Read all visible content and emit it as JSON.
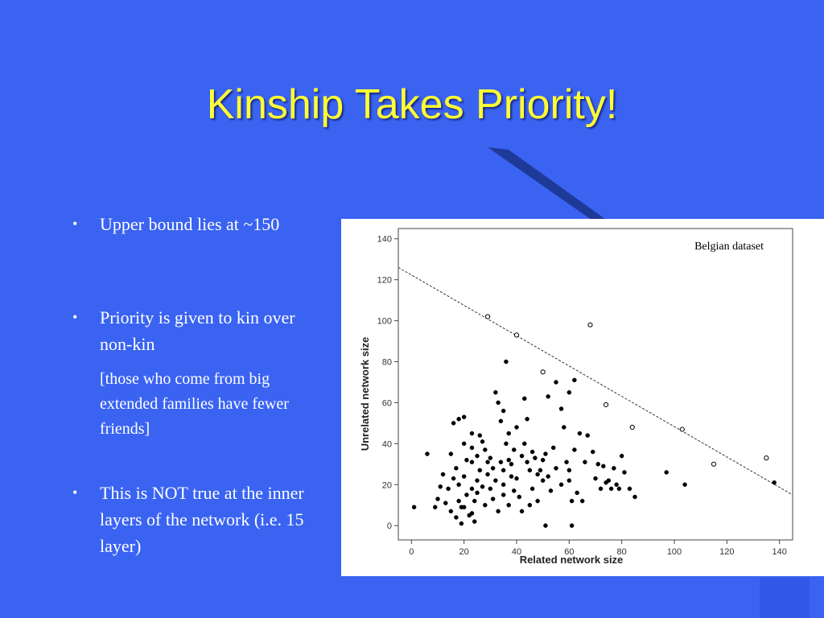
{
  "slide": {
    "title": "Kinship Takes Priority!",
    "bullets": [
      {
        "text": "Upper bound lies at ~150"
      },
      {
        "text": "Priority is given to kin over non-kin"
      },
      {
        "text": "This is NOT true at the inner layers of the network (i.e. 15 layer)"
      }
    ],
    "sub_note": "[those who come from big extended families have fewer friends]",
    "bullet_glyph": "•",
    "colors": {
      "background": "#3a63f2",
      "title": "#ffff33",
      "text": "#ffffff"
    }
  },
  "chart_data": {
    "type": "scatter",
    "annotation": "Belgian dataset",
    "xlabel": "Related network size",
    "ylabel": "Unrelated network size",
    "xlim": [
      -5,
      145
    ],
    "ylim": [
      -7,
      145
    ],
    "xticks": [
      0,
      20,
      40,
      60,
      80,
      100,
      120,
      140
    ],
    "yticks": [
      0,
      20,
      40,
      60,
      80,
      100,
      120,
      140
    ],
    "grid": false,
    "boundary_line": {
      "style": "dashed",
      "from": [
        -5,
        126
      ],
      "to": [
        145,
        15
      ]
    },
    "series": [
      {
        "marker": "filled",
        "points": [
          [
            1,
            9
          ],
          [
            6,
            35
          ],
          [
            9,
            9
          ],
          [
            10,
            13
          ],
          [
            11,
            19
          ],
          [
            12,
            25
          ],
          [
            13,
            11
          ],
          [
            14,
            18
          ],
          [
            15,
            35
          ],
          [
            15,
            7
          ],
          [
            16,
            50
          ],
          [
            16,
            23
          ],
          [
            17,
            28
          ],
          [
            17,
            4
          ],
          [
            18,
            52
          ],
          [
            18,
            12
          ],
          [
            18,
            20
          ],
          [
            19,
            9
          ],
          [
            19,
            1
          ],
          [
            20,
            53
          ],
          [
            20,
            40
          ],
          [
            20,
            24
          ],
          [
            20,
            9
          ],
          [
            21,
            32
          ],
          [
            21,
            15
          ],
          [
            22,
            5
          ],
          [
            23,
            45
          ],
          [
            23,
            38
          ],
          [
            23,
            31
          ],
          [
            23,
            18
          ],
          [
            23,
            6
          ],
          [
            24,
            12
          ],
          [
            24,
            2
          ],
          [
            25,
            34
          ],
          [
            25,
            22
          ],
          [
            25,
            16
          ],
          [
            26,
            44
          ],
          [
            26,
            27
          ],
          [
            27,
            41
          ],
          [
            27,
            19
          ],
          [
            28,
            37
          ],
          [
            28,
            10
          ],
          [
            29,
            25
          ],
          [
            29,
            31
          ],
          [
            30,
            33
          ],
          [
            30,
            18
          ],
          [
            31,
            28
          ],
          [
            31,
            13
          ],
          [
            32,
            22
          ],
          [
            32,
            65
          ],
          [
            33,
            60
          ],
          [
            33,
            7
          ],
          [
            34,
            51
          ],
          [
            34,
            31
          ],
          [
            35,
            56
          ],
          [
            35,
            27
          ],
          [
            35,
            20
          ],
          [
            35,
            15
          ],
          [
            36,
            80
          ],
          [
            36,
            40
          ],
          [
            37,
            45
          ],
          [
            37,
            32
          ],
          [
            37,
            10
          ],
          [
            38,
            30
          ],
          [
            38,
            24
          ],
          [
            39,
            37
          ],
          [
            39,
            17
          ],
          [
            40,
            48
          ],
          [
            40,
            23
          ],
          [
            41,
            14
          ],
          [
            42,
            7
          ],
          [
            42,
            34
          ],
          [
            43,
            62
          ],
          [
            43,
            40
          ],
          [
            44,
            52
          ],
          [
            44,
            31
          ],
          [
            45,
            27
          ],
          [
            45,
            10
          ],
          [
            46,
            36
          ],
          [
            46,
            18
          ],
          [
            47,
            33
          ],
          [
            48,
            25
          ],
          [
            48,
            12
          ],
          [
            49,
            27
          ],
          [
            50,
            32
          ],
          [
            50,
            22
          ],
          [
            51,
            0
          ],
          [
            51,
            35
          ],
          [
            52,
            63
          ],
          [
            52,
            24
          ],
          [
            53,
            17
          ],
          [
            54,
            38
          ],
          [
            55,
            28
          ],
          [
            55,
            70
          ],
          [
            57,
            57
          ],
          [
            57,
            20
          ],
          [
            58,
            48
          ],
          [
            59,
            31
          ],
          [
            60,
            65
          ],
          [
            60,
            27
          ],
          [
            60,
            22
          ],
          [
            61,
            12
          ],
          [
            61,
            0
          ],
          [
            62,
            37
          ],
          [
            62,
            71
          ],
          [
            63,
            16
          ],
          [
            64,
            45
          ],
          [
            65,
            12
          ],
          [
            66,
            31
          ],
          [
            67,
            44
          ],
          [
            69,
            36
          ],
          [
            70,
            23
          ],
          [
            71,
            30
          ],
          [
            72,
            18
          ],
          [
            73,
            29
          ],
          [
            74,
            21
          ],
          [
            75,
            22
          ],
          [
            76,
            18
          ],
          [
            77,
            28
          ],
          [
            78,
            20
          ],
          [
            79,
            18
          ],
          [
            80,
            34
          ],
          [
            81,
            26
          ],
          [
            83,
            18
          ],
          [
            85,
            14
          ],
          [
            97,
            26
          ],
          [
            104,
            20
          ],
          [
            138,
            21
          ]
        ]
      },
      {
        "marker": "hollow",
        "points": [
          [
            29,
            102
          ],
          [
            40,
            93
          ],
          [
            50,
            75
          ],
          [
            68,
            98
          ],
          [
            74,
            59
          ],
          [
            84,
            48
          ],
          [
            103,
            47
          ],
          [
            115,
            30
          ],
          [
            135,
            33
          ]
        ]
      }
    ]
  }
}
